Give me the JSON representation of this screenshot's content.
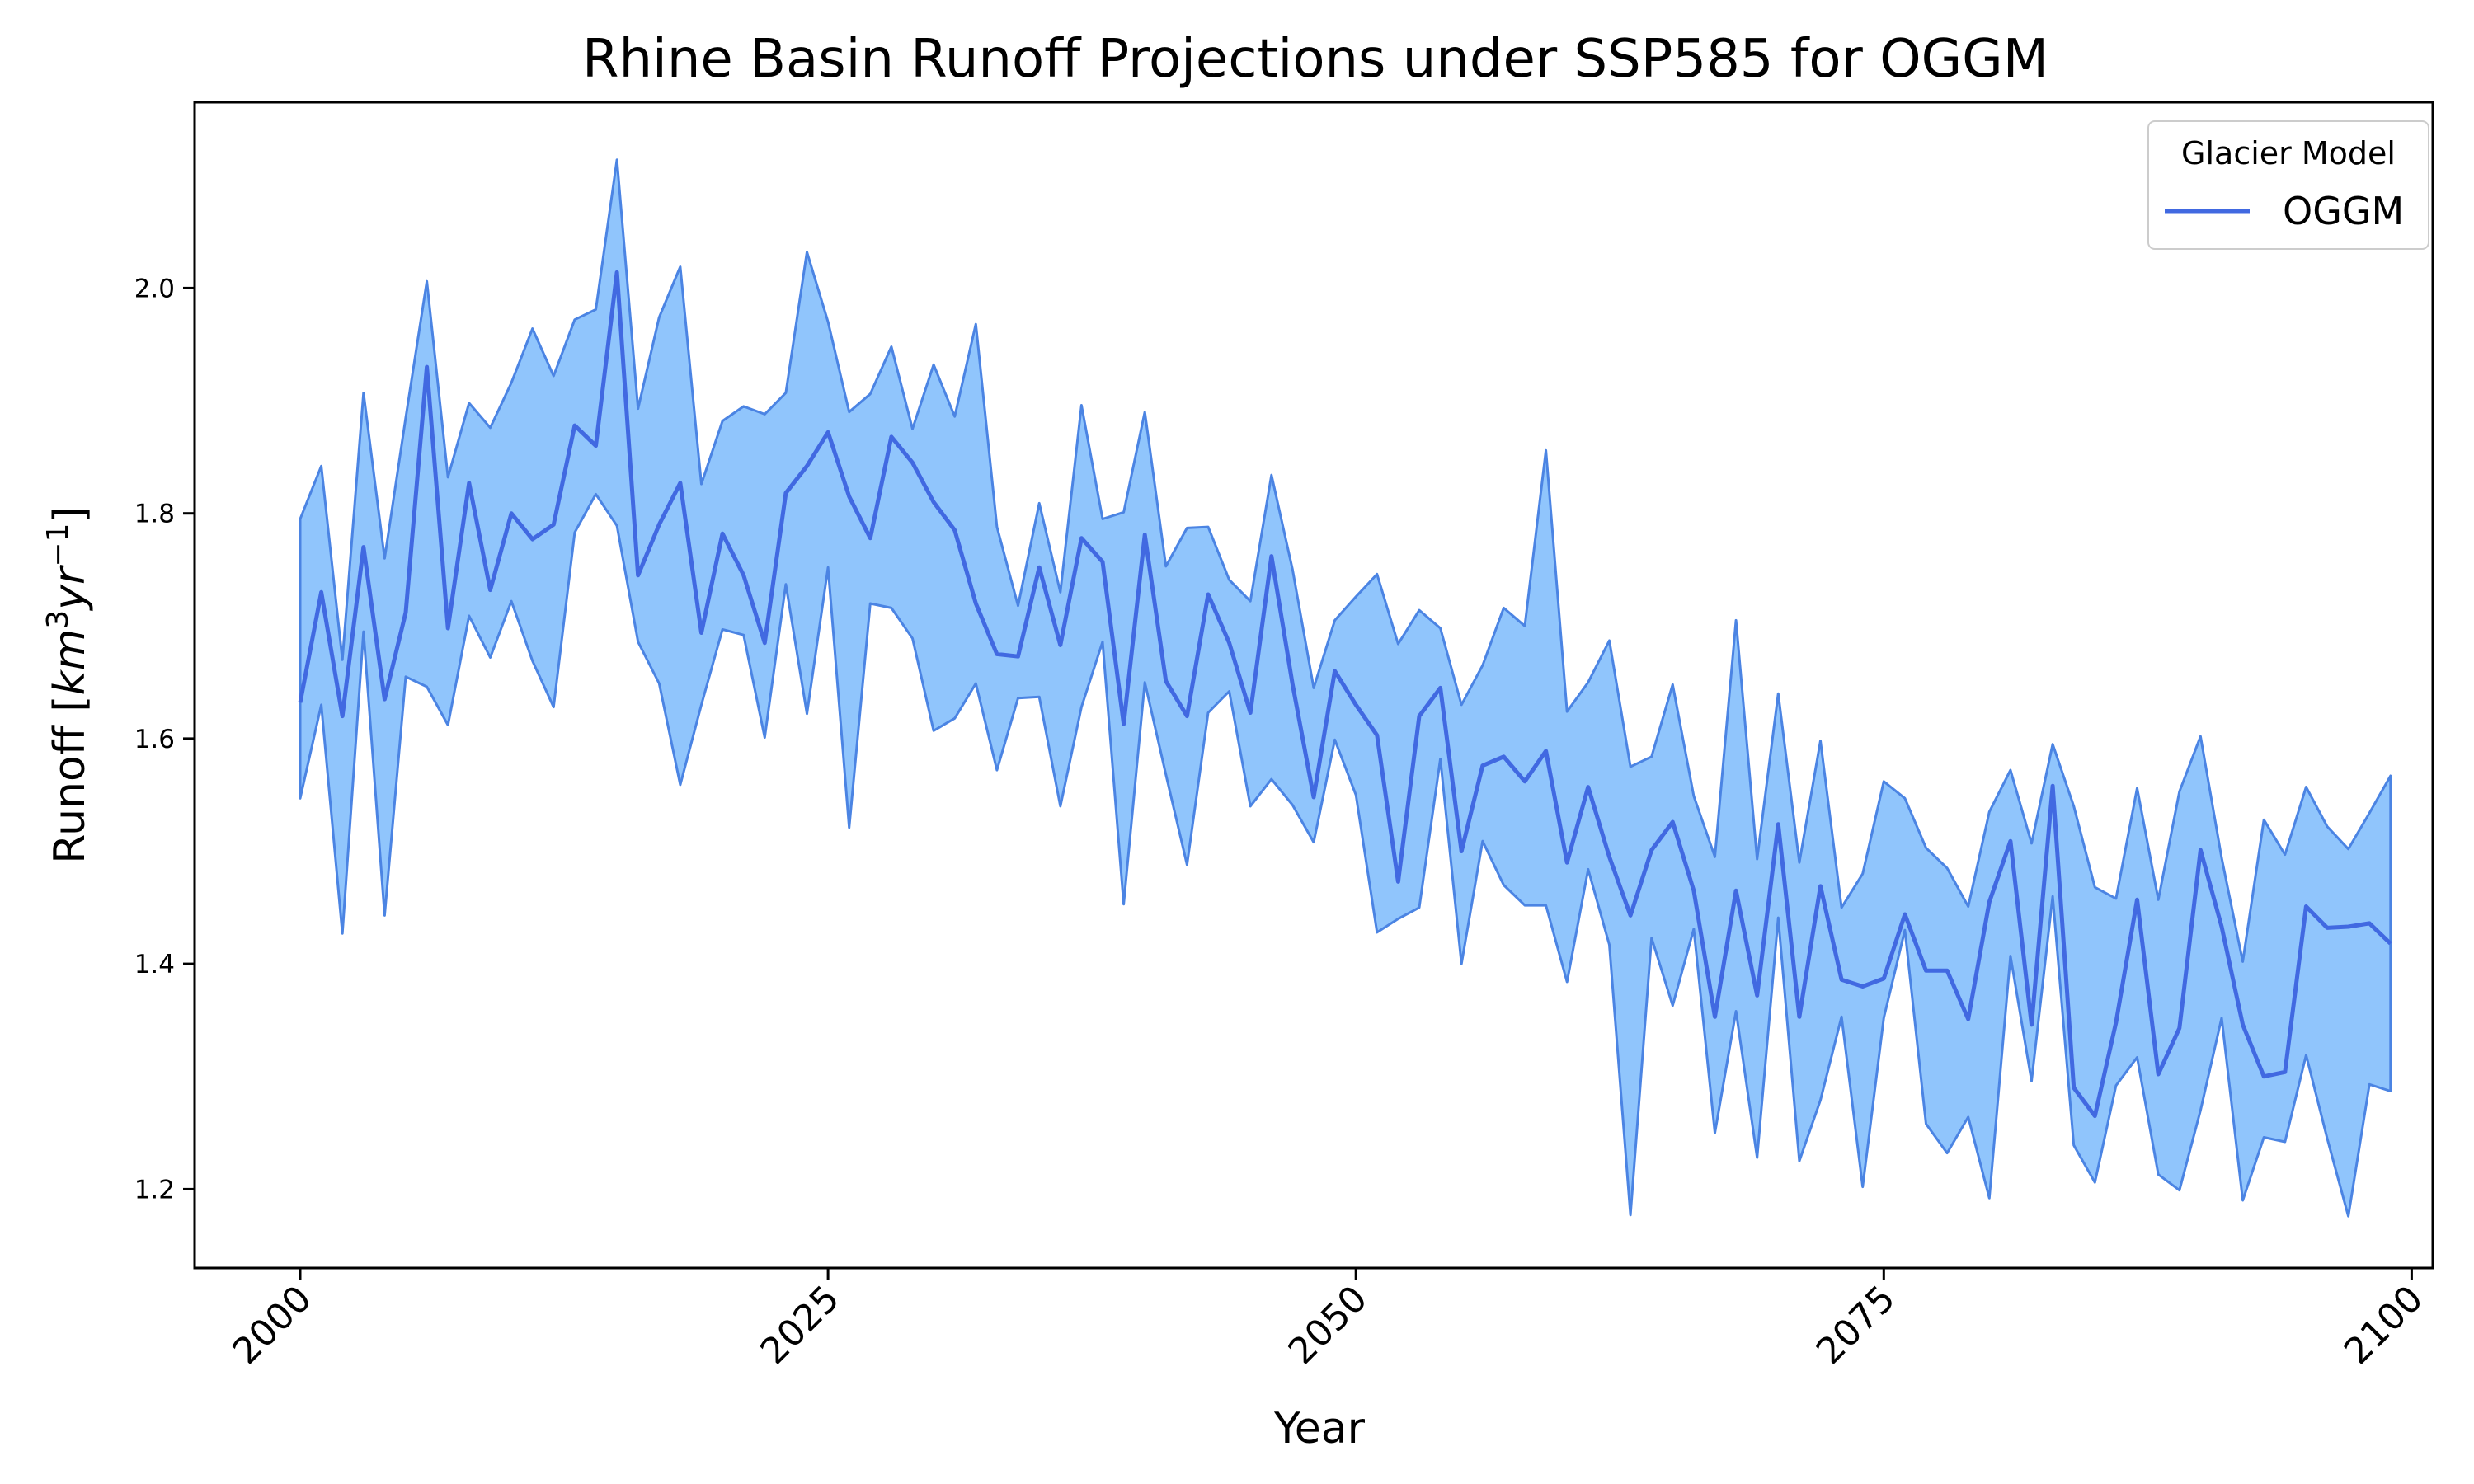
{
  "chart_data": {
    "type": "line",
    "title": "Rhine Basin Runoff Projections under SSP585 for OGGM",
    "xlabel": "Year",
    "ylabel": "Runoff [km³yr⁻¹]",
    "ylabel_parts": {
      "prefix": "Runoff [",
      "unit1": "km",
      "exp1": "3",
      "unit2": "yr",
      "exp2": "−1",
      "suffix": "]"
    },
    "xlim": [
      1995,
      2101
    ],
    "ylim": [
      1.13,
      2.165
    ],
    "xticks": [
      2000,
      2025,
      2050,
      2075,
      2100
    ],
    "xtick_labels": [
      "2000",
      "2025",
      "2050",
      "2075",
      "2100"
    ],
    "yticks": [
      1.2,
      1.4,
      1.6,
      1.8,
      2.0
    ],
    "ytick_labels": [
      "1.2",
      "1.4",
      "1.6",
      "1.8",
      "2.0"
    ],
    "grid": false,
    "legend": {
      "title": "Glacier Model",
      "placement": "top-right",
      "entries": [
        "OGGM"
      ]
    },
    "colors": {
      "line": "#4169e1",
      "band_fill": "#90c5fc",
      "band_edge": "#4b84e3"
    },
    "x": [
      2000,
      2001,
      2002,
      2003,
      2004,
      2005,
      2006,
      2007,
      2008,
      2009,
      2010,
      2011,
      2012,
      2013,
      2014,
      2015,
      2016,
      2017,
      2018,
      2019,
      2020,
      2021,
      2022,
      2023,
      2024,
      2025,
      2026,
      2027,
      2028,
      2029,
      2030,
      2031,
      2032,
      2033,
      2034,
      2035,
      2036,
      2037,
      2038,
      2039,
      2040,
      2041,
      2042,
      2043,
      2044,
      2045,
      2046,
      2047,
      2048,
      2049,
      2050,
      2051,
      2052,
      2053,
      2054,
      2055,
      2056,
      2057,
      2058,
      2059,
      2060,
      2061,
      2062,
      2063,
      2064,
      2065,
      2066,
      2067,
      2068,
      2069,
      2070,
      2071,
      2072,
      2073,
      2074,
      2075,
      2076,
      2077,
      2078,
      2079,
      2080,
      2081,
      2082,
      2083,
      2084,
      2085,
      2086,
      2087,
      2088,
      2089,
      2090,
      2091,
      2092,
      2093,
      2094,
      2095,
      2096,
      2097,
      2098,
      2099
    ],
    "series": [
      {
        "name": "OGGM",
        "values": [
          1.632,
          1.73,
          1.62,
          1.77,
          1.635,
          1.712,
          1.93,
          1.698,
          1.827,
          1.732,
          1.8,
          1.777,
          1.79,
          1.878,
          1.86,
          2.014,
          1.745,
          1.79,
          1.827,
          1.694,
          1.782,
          1.745,
          1.685,
          1.818,
          1.842,
          1.872,
          1.815,
          1.778,
          1.868,
          1.845,
          1.81,
          1.785,
          1.72,
          1.675,
          1.673,
          1.752,
          1.683,
          1.778,
          1.757,
          1.613,
          1.781,
          1.651,
          1.62,
          1.728,
          1.685,
          1.623,
          1.762,
          1.648,
          1.548,
          1.66,
          1.63,
          1.603,
          1.473,
          1.62,
          1.645,
          1.5,
          1.576,
          1.584,
          1.562,
          1.589,
          1.49,
          1.557,
          1.495,
          1.443,
          1.501,
          1.526,
          1.465,
          1.353,
          1.465,
          1.372,
          1.524,
          1.353,
          1.469,
          1.386,
          1.38,
          1.387,
          1.444,
          1.394,
          1.394,
          1.351,
          1.455,
          1.509,
          1.346,
          1.558,
          1.29,
          1.265,
          1.348,
          1.457,
          1.302,
          1.343,
          1.501,
          1.433,
          1.346,
          1.3,
          1.304,
          1.451,
          1.432,
          1.433,
          1.436,
          1.418
        ],
        "lower": [
          1.547,
          1.63,
          1.427,
          1.695,
          1.443,
          1.655,
          1.646,
          1.612,
          1.709,
          1.672,
          1.722,
          1.669,
          1.628,
          1.783,
          1.817,
          1.789,
          1.686,
          1.649,
          1.559,
          1.63,
          1.697,
          1.692,
          1.601,
          1.737,
          1.622,
          1.752,
          1.521,
          1.72,
          1.716,
          1.689,
          1.607,
          1.618,
          1.649,
          1.572,
          1.636,
          1.637,
          1.54,
          1.628,
          1.686,
          1.453,
          1.65,
          1.568,
          1.488,
          1.623,
          1.642,
          1.54,
          1.564,
          1.541,
          1.508,
          1.599,
          1.55,
          1.428,
          1.44,
          1.45,
          1.582,
          1.4,
          1.509,
          1.47,
          1.452,
          1.452,
          1.384,
          1.484,
          1.417,
          1.177,
          1.423,
          1.363,
          1.431,
          1.25,
          1.358,
          1.228,
          1.441,
          1.225,
          1.279,
          1.353,
          1.202,
          1.352,
          1.43,
          1.258,
          1.232,
          1.264,
          1.192,
          1.407,
          1.296,
          1.46,
          1.239,
          1.206,
          1.292,
          1.317,
          1.213,
          1.199,
          1.27,
          1.352,
          1.19,
          1.246,
          1.242,
          1.319,
          1.245,
          1.176,
          1.293,
          1.287
        ],
        "upper": [
          1.795,
          1.842,
          1.67,
          1.907,
          1.76,
          1.885,
          2.006,
          1.832,
          1.898,
          1.876,
          1.916,
          1.964,
          1.922,
          1.972,
          1.981,
          2.114,
          1.893,
          1.974,
          2.019,
          1.826,
          1.882,
          1.895,
          1.888,
          1.907,
          2.032,
          1.97,
          1.89,
          1.906,
          1.948,
          1.875,
          1.932,
          1.886,
          1.968,
          1.788,
          1.718,
          1.809,
          1.73,
          1.896,
          1.795,
          1.801,
          1.89,
          1.753,
          1.787,
          1.788,
          1.741,
          1.722,
          1.834,
          1.75,
          1.645,
          1.705,
          1.726,
          1.746,
          1.684,
          1.714,
          1.698,
          1.63,
          1.665,
          1.716,
          1.7,
          1.856,
          1.624,
          1.65,
          1.687,
          1.575,
          1.584,
          1.648,
          1.549,
          1.495,
          1.705,
          1.493,
          1.64,
          1.49,
          1.598,
          1.45,
          1.48,
          1.562,
          1.547,
          1.503,
          1.485,
          1.451,
          1.535,
          1.572,
          1.507,
          1.595,
          1.54,
          1.468,
          1.458,
          1.556,
          1.457,
          1.553,
          1.602,
          1.494,
          1.402,
          1.528,
          1.497,
          1.557,
          1.522,
          1.502,
          1.534,
          1.567
        ]
      }
    ]
  }
}
